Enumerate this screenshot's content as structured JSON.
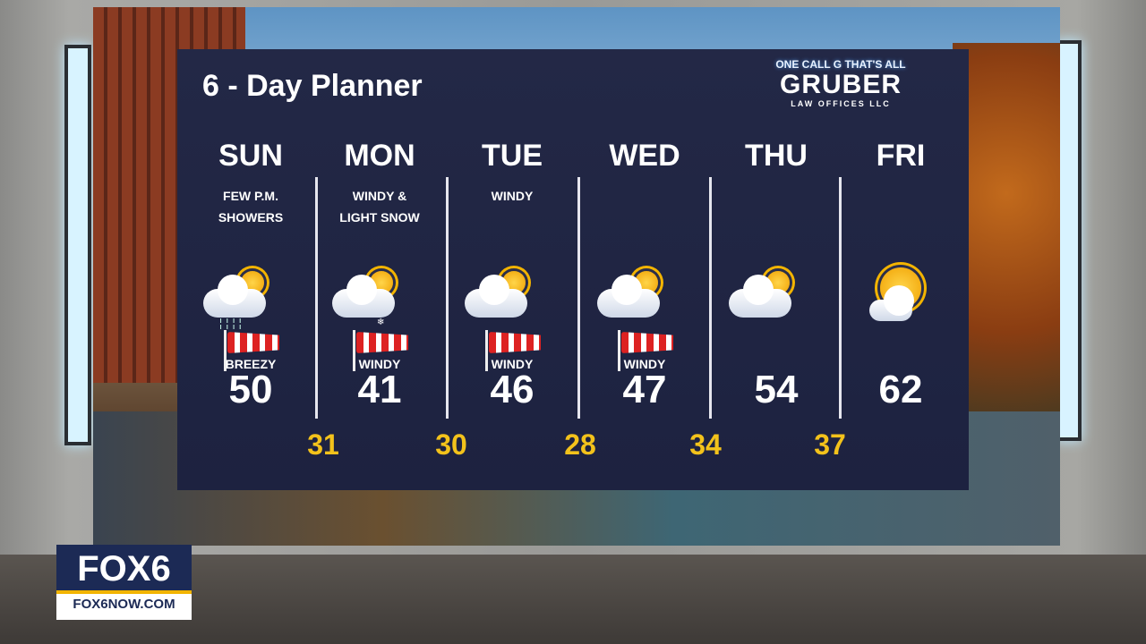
{
  "title": "6 - Day Planner",
  "sponsor": {
    "tagline": "ONE CALL G THAT'S ALL",
    "name": "GRUBER",
    "sub": "LAW OFFICES LLC"
  },
  "days": [
    {
      "day": "SUN",
      "cond": [
        "FEW P.M.",
        "SHOWERS"
      ],
      "icon": "sun-cloud-rain-icon",
      "wind": "BREEZY",
      "high": "50"
    },
    {
      "day": "MON",
      "cond": [
        "WINDY &",
        "LIGHT SNOW"
      ],
      "icon": "sun-cloud-snow-icon",
      "wind": "WINDY",
      "high": "41"
    },
    {
      "day": "TUE",
      "cond": [
        "WINDY",
        ""
      ],
      "icon": "partly-cloudy-icon",
      "wind": "WINDY",
      "high": "46"
    },
    {
      "day": "WED",
      "cond": [
        "",
        ""
      ],
      "icon": "partly-cloudy-icon",
      "wind": "WINDY",
      "high": "47"
    },
    {
      "day": "THU",
      "cond": [
        "",
        ""
      ],
      "icon": "partly-cloudy-icon",
      "wind": "",
      "high": "54"
    },
    {
      "day": "FRI",
      "cond": [
        "",
        ""
      ],
      "icon": "mostly-sunny-icon",
      "wind": "",
      "high": "62"
    }
  ],
  "lows": [
    "31",
    "30",
    "28",
    "34",
    "37"
  ],
  "colors": {
    "panel": "#1f2442",
    "low": "#f3c21b",
    "accent": "#f2b400"
  },
  "station": {
    "logo": "FOX6",
    "url": "FOX6NOW.COM"
  }
}
